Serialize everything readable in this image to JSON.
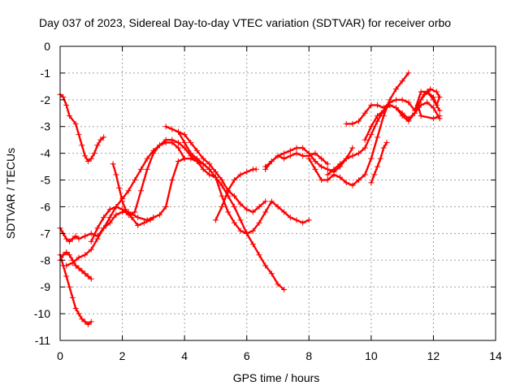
{
  "chart_data": {
    "type": "scatter",
    "title": "Day 037 of 2023, Sidereal Day-to-day VTEC variation (SDTVAR) for receiver orbo",
    "xlabel": "GPS time / hours",
    "ylabel": "SDTVAR / TECUs",
    "xlim": [
      0,
      14
    ],
    "ylim": [
      -11,
      0
    ],
    "xticks": [
      "0",
      "2",
      "4",
      "6",
      "8",
      "10",
      "12",
      "14"
    ],
    "yticks": [
      "0",
      "-1",
      "-2",
      "-3",
      "-4",
      "-5",
      "-6",
      "-7",
      "-8",
      "-9",
      "-10",
      "-11"
    ],
    "grid": true,
    "color": "#ff0000",
    "marker": "plus",
    "series": [
      {
        "x": [
          0.0,
          0.1,
          0.2,
          0.3,
          0.5,
          0.6,
          0.7,
          0.8,
          0.9,
          1.0,
          1.1,
          1.2,
          1.3,
          1.4
        ],
        "y": [
          -1.8,
          -1.9,
          -2.2,
          -2.6,
          -2.9,
          -3.3,
          -3.7,
          -4.1,
          -4.3,
          -4.2,
          -4.0,
          -3.7,
          -3.5,
          -3.4
        ]
      },
      {
        "x": [
          0.0,
          0.1,
          0.2,
          0.3,
          0.4,
          0.5,
          0.6,
          0.7,
          0.8,
          0.9,
          1.0
        ],
        "y": [
          -7.8,
          -8.2,
          -8.6,
          -9.0,
          -9.4,
          -9.8,
          -10.0,
          -10.2,
          -10.3,
          -10.4,
          -10.3
        ]
      },
      {
        "x": [
          0.0,
          0.1,
          0.2,
          0.3,
          0.4,
          0.5,
          0.6,
          0.7,
          0.8,
          0.9,
          1.0
        ],
        "y": [
          -8.0,
          -7.8,
          -7.7,
          -7.8,
          -8.0,
          -8.2,
          -8.3,
          -8.4,
          -8.5,
          -8.6,
          -8.7
        ]
      },
      {
        "x": [
          0.0,
          0.1,
          0.2,
          0.3,
          0.4,
          0.5,
          0.6,
          0.8,
          1.0,
          1.2,
          1.4,
          1.6,
          1.8,
          2.0,
          2.2,
          2.5,
          2.8,
          3.0,
          3.2,
          3.4,
          3.6,
          3.8,
          4.0,
          4.2,
          4.4,
          4.6,
          4.8,
          5.0,
          5.2,
          5.4,
          5.6,
          5.8,
          6.0,
          6.2,
          6.4,
          6.6,
          6.8,
          7.0,
          7.2
        ],
        "y": [
          -6.8,
          -7.0,
          -7.2,
          -7.3,
          -7.2,
          -7.1,
          -7.2,
          -7.1,
          -7.0,
          -7.1,
          -6.8,
          -6.6,
          -6.3,
          -6.2,
          -6.2,
          -6.4,
          -6.5,
          -6.4,
          -6.3,
          -6.0,
          -5.0,
          -4.3,
          -4.2,
          -4.2,
          -4.3,
          -4.6,
          -4.8,
          -4.9,
          -5.2,
          -5.6,
          -6.0,
          -6.5,
          -7.0,
          -7.4,
          -7.8,
          -8.2,
          -8.5,
          -8.9,
          -9.1
        ]
      },
      {
        "x": [
          0.2,
          0.4,
          0.6,
          0.8,
          1.0,
          1.2,
          1.4,
          1.6,
          1.8,
          2.0,
          2.2,
          2.4,
          2.6,
          2.8,
          3.0,
          3.2,
          3.4,
          3.6,
          3.8,
          4.0
        ],
        "y": [
          -8.2,
          -8.1,
          -7.9,
          -7.8,
          -7.6,
          -7.2,
          -6.8,
          -6.4,
          -6.0,
          -5.7,
          -5.4,
          -5.0,
          -4.6,
          -4.2,
          -3.9,
          -3.7,
          -3.6,
          -3.6,
          -3.8,
          -4.2
        ]
      },
      {
        "x": [
          1.0,
          1.2,
          1.4,
          1.6,
          1.8,
          2.0,
          2.2,
          2.4,
          2.6,
          2.8,
          3.0,
          3.2,
          3.4,
          3.6,
          3.8,
          4.0,
          4.2,
          4.4,
          4.6,
          4.8
        ],
        "y": [
          -7.3,
          -6.8,
          -6.4,
          -6.1,
          -6.0,
          -6.1,
          -6.3,
          -6.2,
          -5.4,
          -4.6,
          -4.0,
          -3.7,
          -3.5,
          -3.5,
          -3.6,
          -3.8,
          -4.1,
          -4.3,
          -4.4,
          -4.6
        ]
      },
      {
        "x": [
          1.7,
          1.8,
          1.9,
          2.0,
          2.1,
          2.3,
          2.5,
          2.7,
          2.9,
          3.0
        ],
        "y": [
          -4.4,
          -4.8,
          -5.3,
          -5.8,
          -6.1,
          -6.4,
          -6.7,
          -6.6,
          -6.5,
          -6.4
        ]
      },
      {
        "x": [
          3.4,
          3.6,
          3.8,
          4.0,
          4.2,
          4.4,
          4.6,
          4.8,
          5.0,
          5.2,
          5.4,
          5.6,
          5.8,
          6.0,
          6.2,
          6.4,
          6.6
        ],
        "y": [
          -3.0,
          -3.1,
          -3.2,
          -3.3,
          -3.6,
          -3.9,
          -4.2,
          -4.4,
          -4.7,
          -5.0,
          -5.4,
          -5.6,
          -5.9,
          -6.1,
          -6.2,
          -6.0,
          -5.8
        ]
      },
      {
        "x": [
          3.8,
          4.0,
          4.2,
          4.4,
          4.6,
          4.8,
          5.0,
          5.2,
          5.4,
          5.6,
          5.8,
          6.0,
          6.2,
          6.4,
          6.6,
          6.8,
          7.0,
          7.2,
          7.4,
          7.6,
          7.8,
          8.0
        ],
        "y": [
          -3.2,
          -3.6,
          -4.0,
          -4.2,
          -4.4,
          -4.6,
          -4.9,
          -5.6,
          -6.2,
          -6.6,
          -6.9,
          -7.0,
          -6.9,
          -6.6,
          -6.2,
          -5.8,
          -6.0,
          -6.2,
          -6.4,
          -6.5,
          -6.6,
          -6.5
        ]
      },
      {
        "x": [
          5.0,
          5.2,
          5.4,
          5.6,
          5.8,
          6.0,
          6.2,
          6.3
        ],
        "y": [
          -6.5,
          -6.0,
          -5.4,
          -5.0,
          -4.8,
          -4.7,
          -4.6,
          -4.6
        ]
      },
      {
        "x": [
          6.6,
          6.8,
          7.0,
          7.2,
          7.4,
          7.6,
          7.8,
          8.0,
          8.2,
          8.4,
          8.6,
          8.8,
          9.0,
          9.2,
          9.4
        ],
        "y": [
          -4.5,
          -4.3,
          -4.1,
          -4.0,
          -3.9,
          -3.8,
          -3.8,
          -4.0,
          -4.3,
          -4.5,
          -4.6,
          -4.7,
          -4.5,
          -4.2,
          -3.8
        ]
      },
      {
        "x": [
          6.6,
          6.8,
          7.0,
          7.2,
          7.4,
          7.6,
          7.8,
          8.0,
          8.2,
          8.4,
          8.6
        ],
        "y": [
          -4.6,
          -4.3,
          -4.1,
          -4.2,
          -4.1,
          -4.0,
          -4.1,
          -4.1,
          -4.0,
          -4.2,
          -4.4
        ]
      },
      {
        "x": [
          8.0,
          8.2,
          8.4,
          8.6,
          8.8,
          9.0,
          9.2,
          9.4,
          9.6,
          9.8,
          10.0,
          10.2,
          10.4,
          10.6,
          10.8,
          11.0,
          11.2
        ],
        "y": [
          -4.2,
          -4.6,
          -5.0,
          -5.0,
          -4.8,
          -4.9,
          -5.1,
          -5.2,
          -5.0,
          -4.8,
          -4.2,
          -3.4,
          -2.6,
          -2.0,
          -1.6,
          -1.3,
          -1.0
        ]
      },
      {
        "x": [
          8.6,
          8.8,
          9.0,
          9.2,
          9.4,
          9.6,
          9.8,
          10.0,
          10.2,
          10.4,
          10.6,
          10.8,
          11.0,
          11.2,
          11.4,
          11.6,
          11.8,
          12.0,
          12.2
        ],
        "y": [
          -4.8,
          -4.6,
          -4.4,
          -4.2,
          -4.1,
          -4.0,
          -3.8,
          -3.3,
          -2.8,
          -2.4,
          -2.2,
          -2.3,
          -2.5,
          -2.7,
          -2.5,
          -2.2,
          -2.1,
          -2.3,
          -2.7
        ]
      },
      {
        "x": [
          9.2,
          9.4,
          9.6,
          9.8,
          10.0,
          10.2,
          10.4,
          10.6,
          10.8,
          11.0,
          11.2,
          11.4,
          11.6,
          11.8,
          12.0,
          12.2
        ],
        "y": [
          -2.9,
          -2.9,
          -2.8,
          -2.5,
          -2.2,
          -2.2,
          -2.3,
          -2.1,
          -2.0,
          -2.0,
          -2.1,
          -2.4,
          -1.7,
          -1.7,
          -2.0,
          -2.4
        ]
      },
      {
        "x": [
          9.8,
          10.0,
          10.2,
          10.4,
          10.6,
          10.8,
          11.0,
          11.2,
          11.4,
          11.6,
          11.8,
          12.0,
          12.1,
          12.2,
          12.1,
          11.9,
          11.7,
          11.5,
          11.6,
          12.0,
          12.2
        ],
        "y": [
          -3.5,
          -3.0,
          -2.6,
          -2.4,
          -2.2,
          -2.3,
          -2.6,
          -2.8,
          -2.5,
          -2.0,
          -1.7,
          -1.9,
          -2.2,
          -1.9,
          -1.7,
          -1.6,
          -1.8,
          -2.2,
          -2.6,
          -2.7,
          -2.6
        ]
      },
      {
        "x": [
          10.0,
          10.1,
          10.2,
          10.3,
          10.4,
          10.5
        ],
        "y": [
          -5.1,
          -4.8,
          -4.5,
          -4.2,
          -3.8,
          -3.6
        ]
      }
    ]
  }
}
